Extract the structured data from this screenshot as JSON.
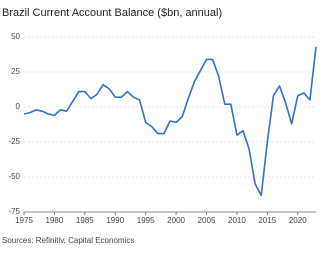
{
  "chart_data": {
    "type": "line",
    "title": "Brazil Current Account Balance ($bn, annual)",
    "source": "Sources: Refinitiv, Capital Economics",
    "x": [
      1975,
      1976,
      1977,
      1978,
      1979,
      1980,
      1981,
      1982,
      1983,
      1984,
      1985,
      1986,
      1987,
      1988,
      1989,
      1990,
      1991,
      1992,
      1993,
      1994,
      1995,
      1996,
      1997,
      1998,
      1999,
      2000,
      2001,
      2002,
      2003,
      2004,
      2005,
      2006,
      2007,
      2008,
      2009,
      2010,
      2011,
      2012,
      2013,
      2014,
      2015,
      2016,
      2017,
      2018,
      2019,
      2020,
      2021,
      2022,
      2023
    ],
    "series": [
      {
        "name": "Current account balance",
        "color": "#2f6fce",
        "values": [
          -5,
          -4,
          -2,
          -3,
          -5,
          -6,
          -2,
          -3,
          4,
          11,
          11,
          6,
          9,
          16,
          13,
          7,
          7,
          11,
          7,
          5,
          -11,
          -14,
          -19,
          -19,
          -10,
          -11,
          -7,
          6,
          18,
          26,
          34,
          34,
          22,
          2,
          2,
          -20,
          -17,
          -30,
          -55,
          -63,
          -25,
          8,
          15,
          3,
          -12,
          8,
          10,
          5,
          43
        ]
      }
    ],
    "xlim": [
      1975,
      2023
    ],
    "xticks": [
      1975,
      1980,
      1985,
      1990,
      1995,
      2000,
      2005,
      2010,
      2015,
      2020
    ],
    "ylim": [
      -75,
      50
    ],
    "yticks": [
      50,
      25,
      0,
      -25,
      -50,
      -75
    ],
    "grid": true
  }
}
